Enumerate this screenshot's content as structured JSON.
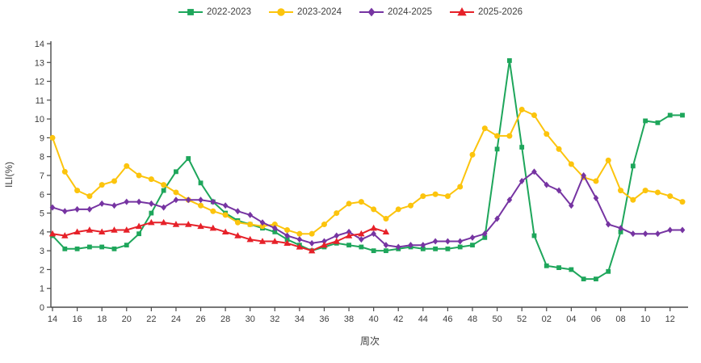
{
  "chart_data": {
    "type": "line",
    "title": "",
    "xlabel": "周次",
    "ylabel": "ILI(%)",
    "ylim": [
      0,
      14
    ],
    "y_tick_labels": [
      "0",
      "1",
      "2",
      "3",
      "4",
      "5",
      "6",
      "7",
      "8",
      "9",
      "10",
      "11",
      "12",
      "13",
      "14"
    ],
    "grid": false,
    "legend_position": "top",
    "x_categories": [
      "14",
      "15",
      "16",
      "17",
      "18",
      "19",
      "20",
      "21",
      "22",
      "23",
      "24",
      "25",
      "26",
      "27",
      "28",
      "29",
      "30",
      "31",
      "32",
      "33",
      "34",
      "35",
      "36",
      "37",
      "38",
      "39",
      "40",
      "41",
      "42",
      "43",
      "44",
      "45",
      "46",
      "47",
      "48",
      "49",
      "50",
      "51",
      "52",
      "01",
      "02",
      "03",
      "04",
      "05",
      "06",
      "07",
      "08",
      "09",
      "10",
      "11",
      "12",
      "13"
    ],
    "x_tick_labels": [
      "14",
      "16",
      "18",
      "20",
      "22",
      "24",
      "26",
      "28",
      "30",
      "32",
      "34",
      "36",
      "38",
      "40",
      "42",
      "44",
      "46",
      "48",
      "50",
      "52",
      "02",
      "04",
      "06",
      "08",
      "10",
      "12"
    ],
    "axis_color": "#4a4a4a",
    "series": [
      {
        "name": "2022-2023",
        "color": "#1ea65b",
        "marker": "square",
        "values": [
          3.8,
          3.1,
          3.1,
          3.2,
          3.2,
          3.1,
          3.3,
          3.9,
          5.0,
          6.2,
          7.2,
          7.9,
          6.6,
          5.6,
          5.0,
          4.6,
          4.4,
          4.2,
          4.0,
          3.6,
          3.3,
          3.0,
          3.2,
          3.4,
          3.3,
          3.2,
          3.0,
          3.0,
          3.1,
          3.2,
          3.1,
          3.1,
          3.1,
          3.2,
          3.3,
          3.7,
          8.4,
          13.1,
          8.5,
          3.8,
          2.2,
          2.1,
          2.0,
          1.5,
          1.5,
          1.9,
          4.0,
          7.5,
          9.9,
          9.8,
          10.2,
          10.2
        ]
      },
      {
        "name": "2023-2024",
        "color": "#fcc40d",
        "marker": "circle",
        "values": [
          9.0,
          7.2,
          6.2,
          5.9,
          6.5,
          6.7,
          7.5,
          7.0,
          6.8,
          6.5,
          6.1,
          5.7,
          5.4,
          5.1,
          4.9,
          4.5,
          4.4,
          4.3,
          4.4,
          4.1,
          3.9,
          3.9,
          4.4,
          5.0,
          5.5,
          5.6,
          5.2,
          4.7,
          5.2,
          5.4,
          5.9,
          6.0,
          5.9,
          6.4,
          8.1,
          9.5,
          9.1,
          9.1,
          10.5,
          10.2,
          9.2,
          8.4,
          7.6,
          6.9,
          6.7,
          7.8,
          6.2,
          5.7,
          6.2,
          6.1,
          5.9,
          5.6
        ]
      },
      {
        "name": "2024-2025",
        "color": "#7634a2",
        "marker": "diamond",
        "values": [
          5.3,
          5.1,
          5.2,
          5.2,
          5.5,
          5.4,
          5.6,
          5.6,
          5.5,
          5.3,
          5.7,
          5.7,
          5.7,
          5.6,
          5.4,
          5.1,
          4.9,
          4.5,
          4.2,
          3.8,
          3.6,
          3.4,
          3.5,
          3.8,
          4.0,
          3.6,
          3.9,
          3.3,
          3.2,
          3.3,
          3.3,
          3.5,
          3.5,
          3.5,
          3.7,
          3.9,
          4.7,
          5.7,
          6.7,
          7.2,
          6.5,
          6.2,
          5.4,
          7.0,
          5.8,
          4.4,
          4.2,
          3.9,
          3.9,
          3.9,
          4.1,
          4.1
        ]
      },
      {
        "name": "2025-2026",
        "color": "#e62129",
        "marker": "triangle",
        "values": [
          3.9,
          3.8,
          4.0,
          4.1,
          4.0,
          4.1,
          4.1,
          4.3,
          4.5,
          4.5,
          4.4,
          4.4,
          4.3,
          4.2,
          4.0,
          3.8,
          3.6,
          3.5,
          3.5,
          3.4,
          3.2,
          3.0,
          3.3,
          3.5,
          3.8,
          3.9,
          4.2,
          4.0,
          null,
          null,
          null,
          null,
          null,
          null,
          null,
          null,
          null,
          null,
          null,
          null,
          null,
          null,
          null,
          null,
          null,
          null,
          null,
          null,
          null,
          null,
          null,
          null
        ]
      }
    ]
  }
}
